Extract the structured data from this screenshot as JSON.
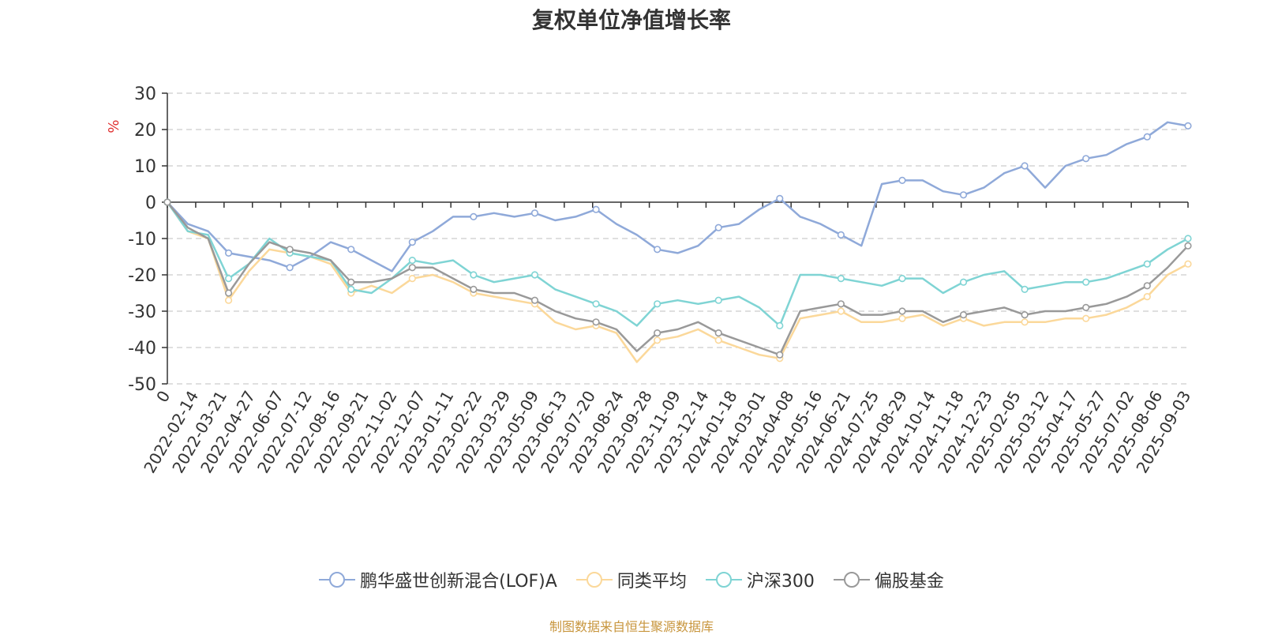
{
  "chart_data": {
    "type": "line",
    "title": "复权单位净值增长率",
    "ylabel": "%",
    "ylim": [
      -50,
      30
    ],
    "yticks": [
      30,
      20,
      10,
      0,
      -10,
      -20,
      -30,
      -40,
      -50
    ],
    "grid": true,
    "legend_position": "bottom",
    "xticks": [
      "0",
      "2022-02-14",
      "2022-03-21",
      "2022-04-27",
      "2022-06-07",
      "2022-07-12",
      "2022-08-16",
      "2022-09-21",
      "2022-11-02",
      "2022-12-07",
      "2023-01-11",
      "2023-02-22",
      "2023-03-29",
      "2023-05-09",
      "2023-06-13",
      "2023-07-20",
      "2023-08-24",
      "2023-09-28",
      "2023-11-09",
      "2023-12-14",
      "2024-01-18",
      "2024-03-01",
      "2024-04-08",
      "2024-05-16",
      "2024-06-21",
      "2024-07-25",
      "2024-08-29",
      "2024-10-14",
      "2024-11-18",
      "2024-12-23",
      "2025-02-05",
      "2025-03-12",
      "2025-04-17",
      "2025-05-27",
      "2025-07-02",
      "2025-08-06",
      "2025-09-03"
    ],
    "series": [
      {
        "name": "鹏华盛世创新混合(LOF)A",
        "color": "#8fa9d9",
        "values": [
          0,
          -6,
          -8,
          -14,
          -15,
          -16,
          -18,
          -15,
          -11,
          -13,
          -16,
          -19,
          -11,
          -8,
          -4,
          -4,
          -3,
          -4,
          -3,
          -5,
          -4,
          -2,
          -6,
          -9,
          -13,
          -14,
          -12,
          -7,
          -6,
          -2,
          1,
          -4,
          -6,
          -9,
          -12,
          5,
          6,
          6,
          3,
          2,
          4,
          8,
          10,
          4,
          10,
          12,
          13,
          16,
          18,
          22,
          21
        ]
      },
      {
        "name": "同类平均",
        "color": "#fbd89a",
        "values": [
          0,
          -8,
          -10,
          -27,
          -19,
          -13,
          -14,
          -15,
          -17,
          -25,
          -23,
          -25,
          -21,
          -20,
          -22,
          -25,
          -26,
          -27,
          -28,
          -33,
          -35,
          -34,
          -36,
          -44,
          -38,
          -37,
          -35,
          -38,
          -40,
          -42,
          -43,
          -32,
          -31,
          -30,
          -33,
          -33,
          -32,
          -31,
          -34,
          -32,
          -34,
          -33,
          -33,
          -33,
          -32,
          -32,
          -31,
          -29,
          -26,
          -20,
          -17
        ]
      },
      {
        "name": "沪深300",
        "color": "#7fd4d4",
        "values": [
          0,
          -8,
          -9,
          -21,
          -17,
          -10,
          -14,
          -15,
          -16,
          -24,
          -25,
          -21,
          -16,
          -17,
          -16,
          -20,
          -22,
          -21,
          -20,
          -24,
          -26,
          -28,
          -30,
          -34,
          -28,
          -27,
          -28,
          -27,
          -26,
          -29,
          -34,
          -20,
          -20,
          -21,
          -22,
          -23,
          -21,
          -21,
          -25,
          -22,
          -20,
          -19,
          -24,
          -23,
          -22,
          -22,
          -21,
          -19,
          -17,
          -13,
          -10
        ]
      },
      {
        "name": "偏股基金",
        "color": "#999999",
        "values": [
          0,
          -7,
          -10,
          -25,
          -17,
          -11,
          -13,
          -14,
          -16,
          -22,
          -22,
          -21,
          -18,
          -18,
          -21,
          -24,
          -25,
          -25,
          -27,
          -30,
          -32,
          -33,
          -35,
          -41,
          -36,
          -35,
          -33,
          -36,
          -38,
          -40,
          -42,
          -30,
          -29,
          -28,
          -31,
          -31,
          -30,
          -30,
          -33,
          -31,
          -30,
          -29,
          -31,
          -30,
          -30,
          -29,
          -28,
          -26,
          -23,
          -18,
          -12
        ]
      }
    ]
  },
  "footer": {
    "source": "制图数据来自恒生聚源数据库"
  }
}
